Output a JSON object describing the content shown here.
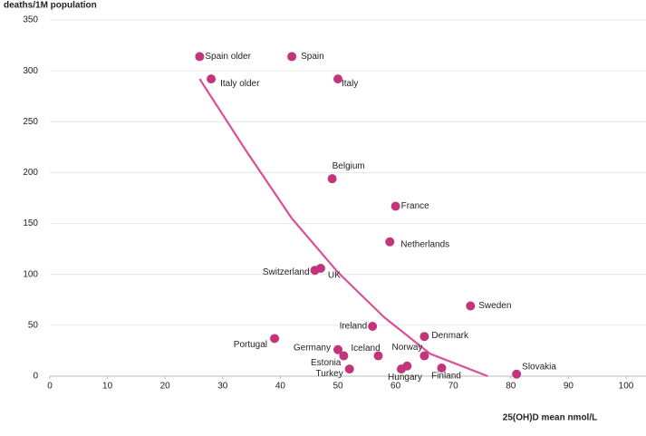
{
  "chart_data": {
    "type": "scatter",
    "y_label": "deaths/1M population",
    "x_label": "25(OH)D mean nmol/L",
    "labels": [
      "Spain older",
      "Spain",
      "Italy older",
      "Italy",
      "Belgium",
      "France",
      "Netherlands",
      "Switzerland",
      "UK",
      "Sweden",
      "Ireland",
      "Denmark",
      "Portugal",
      "Germany",
      "Iceland",
      "Norway",
      "Estonia",
      "Turkey",
      "Hungary",
      null,
      "Finland",
      "Slovakia"
    ],
    "x": [
      26,
      42,
      28,
      50,
      49,
      60,
      59,
      46,
      47,
      73,
      56,
      65,
      39,
      50,
      57,
      65,
      51,
      52,
      61,
      62,
      68,
      81
    ],
    "values": [
      314,
      314,
      292,
      292,
      194,
      167,
      132,
      104,
      106,
      69,
      49,
      39,
      37,
      26,
      20,
      20,
      20,
      7,
      7,
      10,
      8,
      2
    ],
    "color": "#c2357b",
    "trendline": {
      "x": [
        26,
        34,
        42,
        50,
        58,
        66,
        76
      ],
      "values": [
        292,
        222,
        155,
        102,
        58,
        22,
        0
      ],
      "color": "#d9509a"
    },
    "xlim": [
      0,
      100
    ],
    "xticks": [
      0,
      10,
      20,
      30,
      40,
      50,
      60,
      70,
      80,
      90,
      100
    ],
    "ylim": [
      0,
      350
    ],
    "yticks": [
      0,
      50,
      100,
      150,
      200,
      250,
      300,
      350
    ],
    "grid": true
  }
}
